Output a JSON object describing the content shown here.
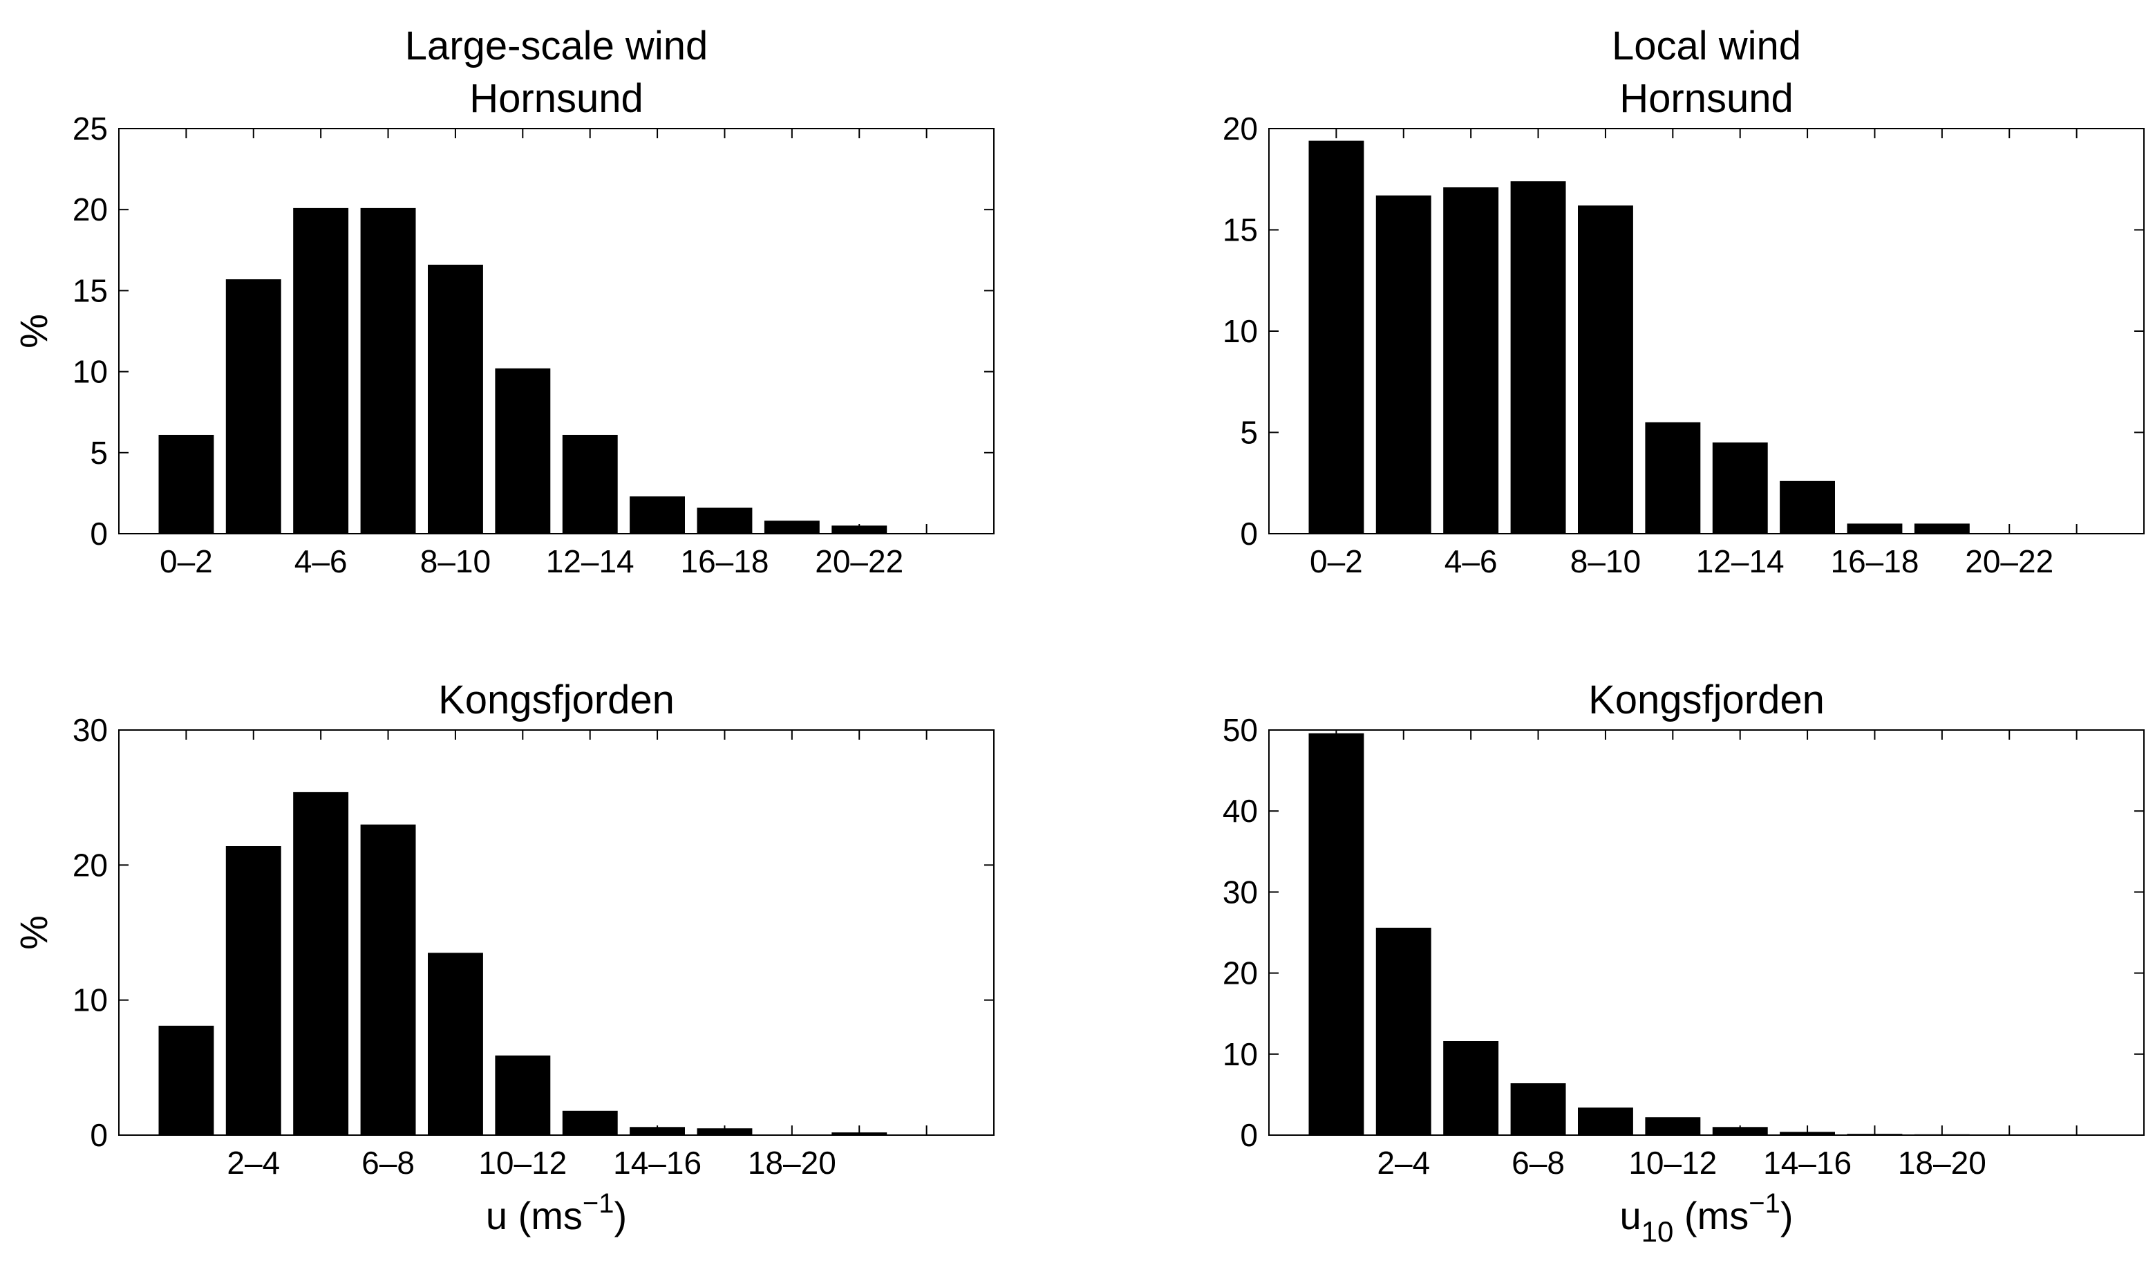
{
  "chart_data": [
    {
      "type": "bar",
      "title": [
        "Large-scale wind",
        "Hornsund"
      ],
      "ylabel": "%",
      "xlabel": "",
      "ylim": [
        0,
        25
      ],
      "yticks": [
        0,
        5,
        10,
        15,
        20,
        25
      ],
      "categories": [
        "0–2",
        "2–4",
        "4–6",
        "6–8",
        "8–10",
        "10–12",
        "12–14",
        "14–16",
        "16–18",
        "18–20",
        "20–22",
        "22–24"
      ],
      "xtick_labels": [
        "0–2",
        "",
        "4–6",
        "",
        "8–10",
        "",
        "12–14",
        "",
        "16–18",
        "",
        "20–22",
        ""
      ],
      "values": [
        6.1,
        15.7,
        20.1,
        20.1,
        16.6,
        10.2,
        6.1,
        2.3,
        1.6,
        0.8,
        0.5,
        0
      ]
    },
    {
      "type": "bar",
      "title": [
        "Local wind",
        "Hornsund"
      ],
      "ylabel": "",
      "xlabel": "",
      "ylim": [
        0,
        20
      ],
      "yticks": [
        0,
        5,
        10,
        15,
        20
      ],
      "categories": [
        "0–2",
        "2–4",
        "4–6",
        "6–8",
        "8–10",
        "10–12",
        "12–14",
        "14–16",
        "16–18",
        "18–20",
        "20–22",
        "22–24"
      ],
      "xtick_labels": [
        "0–2",
        "",
        "4–6",
        "",
        "8–10",
        "",
        "12–14",
        "",
        "16–18",
        "",
        "20–22",
        ""
      ],
      "values": [
        19.4,
        16.7,
        17.1,
        17.4,
        16.2,
        5.5,
        4.5,
        2.6,
        0.5,
        0.5,
        0,
        0
      ]
    },
    {
      "type": "bar",
      "title": [
        "Kongsfjorden"
      ],
      "ylabel": "%",
      "xlabel": "u (ms",
      "xlabel_sup": "−1",
      "xlabel_end": ")",
      "ylim": [
        0,
        30
      ],
      "yticks": [
        0,
        10,
        20,
        30
      ],
      "categories": [
        "0–2",
        "2–4",
        "4–6",
        "6–8",
        "8–10",
        "10–12",
        "12–14",
        "14–16",
        "16–18",
        "18–20",
        "20–22",
        "22–24"
      ],
      "xtick_labels": [
        "",
        "2–4",
        "",
        "6–8",
        "",
        "10–12",
        "",
        "14–16",
        "",
        "18–20",
        "",
        ""
      ],
      "values": [
        8.1,
        21.4,
        25.4,
        23.0,
        13.5,
        5.9,
        1.8,
        0.6,
        0.5,
        0,
        0.2,
        0
      ]
    },
    {
      "type": "bar",
      "title": [
        "Kongsfjorden"
      ],
      "ylabel": "",
      "xlabel": "u",
      "xlabel_sub": "10",
      "xlabel_mid": " (ms",
      "xlabel_sup": "−1",
      "xlabel_end": ")",
      "ylim": [
        0,
        50
      ],
      "yticks": [
        0,
        10,
        20,
        30,
        40,
        50
      ],
      "categories": [
        "0–2",
        "2–4",
        "4–6",
        "6–8",
        "8–10",
        "10–12",
        "12–14",
        "14–16",
        "16–18",
        "18–20",
        "20–22",
        "22–24"
      ],
      "xtick_labels": [
        "",
        "2–4",
        "",
        "6–8",
        "",
        "10–12",
        "",
        "14–16",
        "",
        "18–20",
        "",
        ""
      ],
      "values": [
        49.6,
        25.6,
        11.6,
        6.4,
        3.4,
        2.2,
        1.0,
        0.4,
        0.15,
        0.1,
        0,
        0
      ]
    }
  ]
}
